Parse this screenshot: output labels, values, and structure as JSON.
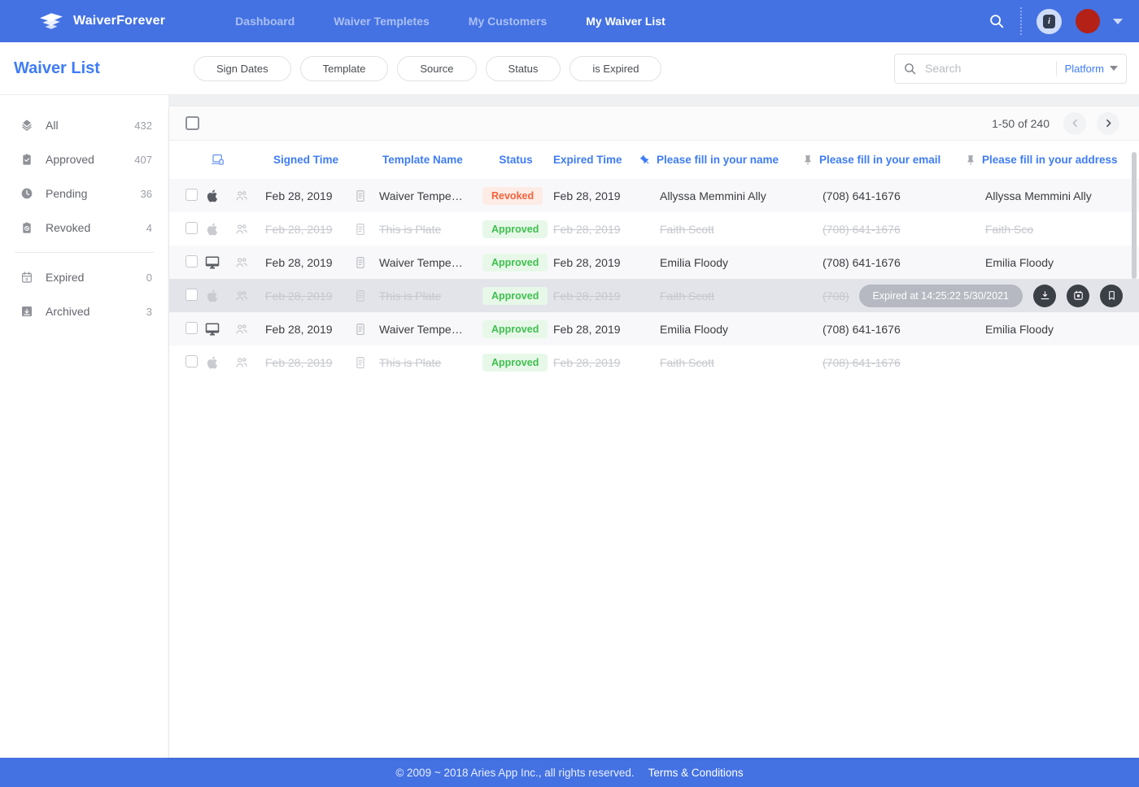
{
  "colors": {
    "primary_blue": "#4472e3",
    "link_blue": "#3f7cf6",
    "avatar_red": "#b42116"
  },
  "nav": {
    "brand": "WaiverForever",
    "items": [
      {
        "label": "Dashboard",
        "active": false
      },
      {
        "label": "Waiver Templetes",
        "active": false
      },
      {
        "label": "My Customers",
        "active": false
      },
      {
        "label": "My Waiver List",
        "active": true
      }
    ]
  },
  "header": {
    "title": "Waiver List",
    "filters": [
      "Sign Dates",
      "Template",
      "Source",
      "Status",
      "is Expired"
    ],
    "search": {
      "placeholder": "Search",
      "scope": "Platform"
    }
  },
  "sidebar": {
    "groups": [
      {
        "items": [
          {
            "icon": "layers-icon",
            "label": "All",
            "count": "432"
          },
          {
            "icon": "clipboard-check-icon",
            "label": "Approved",
            "count": "407"
          },
          {
            "icon": "clock-icon",
            "label": "Pending",
            "count": "36"
          },
          {
            "icon": "clipboard-revoked-icon",
            "label": "Revoked",
            "count": "4"
          }
        ]
      },
      {
        "items": [
          {
            "icon": "calendar-expired-icon",
            "label": "Expired",
            "count": "0"
          },
          {
            "icon": "archive-icon",
            "label": "Archived",
            "count": "3"
          }
        ]
      }
    ]
  },
  "table": {
    "pagination": {
      "range": "1-50 of 240"
    },
    "columns": {
      "device_icon": "laptop-icon",
      "signed_time": "Signed Time",
      "template_name": "Template Name",
      "status": "Status",
      "expired_time": "Expired Time",
      "name": "Please fill in your name",
      "email": "Please fill in your email",
      "address": "Please fill in your address"
    },
    "status_colors": {
      "Approved": {
        "text": "#3fbf4e",
        "bg": "#e7f8e9"
      },
      "Revoked": {
        "text": "#f4623a",
        "bg": "#fdece6"
      }
    },
    "rows": [
      {
        "platform": "apple-icon",
        "signed_time": "Feb 28, 2019",
        "template_name": "Waiver Tempe…",
        "status": "Revoked",
        "expired_time": "Feb 28, 2019",
        "name": "Allyssa Memmini Ally",
        "email": "(708) 641-1676",
        "address": "Allyssa Memmini Ally",
        "struck": false,
        "highlighted": false
      },
      {
        "platform": "apple-icon",
        "signed_time": "Feb 28, 2019",
        "template_name": "This is Plate",
        "status": "Approved",
        "expired_time": "Feb 28, 2019",
        "name": "Faith Scott",
        "email": "(708) 641-1676",
        "address": "Faith Sco",
        "struck": true,
        "highlighted": false
      },
      {
        "platform": "desktop-icon",
        "signed_time": "Feb 28, 2019",
        "template_name": "Waiver Tempe…",
        "status": "Approved",
        "expired_time": "Feb 28, 2019",
        "name": "Emilia Floody",
        "email": "(708) 641-1676",
        "address": "Emilia Floody",
        "struck": false,
        "highlighted": false
      },
      {
        "platform": "apple-icon",
        "signed_time": "Feb 28, 2019",
        "template_name": "This is Plate",
        "status": "Approved",
        "expired_time": "Feb 28, 2019",
        "name": "Faith Scott",
        "email": "(708)",
        "address": "",
        "struck": true,
        "highlighted": true,
        "tooltip": "Expired at 14:25:22 5/30/2021",
        "actions": [
          "download-icon",
          "calendar-icon",
          "bookmark-icon"
        ]
      },
      {
        "platform": "desktop-icon",
        "signed_time": "Feb 28, 2019",
        "template_name": "Waiver Tempe…",
        "status": "Approved",
        "expired_time": "Feb 28, 2019",
        "name": "Emilia Floody",
        "email": "(708) 641-1676",
        "address": "Emilia Floody",
        "struck": false,
        "highlighted": false
      },
      {
        "platform": "apple-icon",
        "signed_time": "Feb 28, 2019",
        "template_name": "This is Plate",
        "status": "Approved",
        "expired_time": "Feb 28, 2019",
        "name": "Faith Scott",
        "email": "(708) 641-1676",
        "address": "",
        "struck": true,
        "highlighted": false
      }
    ]
  },
  "footer": {
    "copyright": "© 2009 ~ 2018 Aries App Inc., all rights reserved.",
    "terms": "Terms & Conditions"
  }
}
